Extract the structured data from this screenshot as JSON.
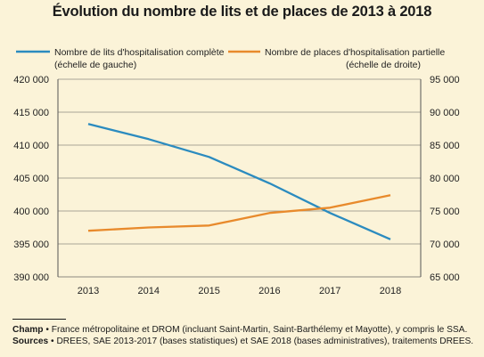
{
  "chart_data": {
    "type": "line",
    "title": "Évolution du nombre de lits et de places de 2013 à 2018",
    "categories": [
      "2013",
      "2014",
      "2015",
      "2016",
      "2017",
      "2018"
    ],
    "series": [
      {
        "name": "Nombre de lits d'hospitalisation complète",
        "axis_note": "(échelle de gauche)",
        "axis": "left",
        "color": "#2b8bbf",
        "values": [
          413200,
          410900,
          408200,
          404200,
          399700,
          395700
        ]
      },
      {
        "name": "Nombre de places d'hospitalisation partielle",
        "axis_note": "(échelle de droite)",
        "axis": "right",
        "color": "#e88a2c",
        "values": [
          72000,
          72500,
          72800,
          74700,
          75500,
          77400
        ]
      }
    ],
    "y_left": {
      "min": 390000,
      "max": 420000,
      "ticks": [
        "390 000",
        "395 000",
        "400 000",
        "405 000",
        "410 000",
        "415 000",
        "420 000"
      ]
    },
    "y_right": {
      "min": 65000,
      "max": 95000,
      "ticks": [
        "65 000",
        "70 000",
        "75 000",
        "80 000",
        "85 000",
        "90 000",
        "95 000"
      ]
    },
    "grid": true,
    "legend_position": "top"
  },
  "notes": {
    "champ_label": "Champ",
    "champ_text": "France métropolitaine et DROM (incluant Saint-Martin, Saint-Barthélemy et Mayotte), y compris le SSA.",
    "sources_label": "Sources",
    "sources_text": "DREES, SAE 2013-2017 (bases statistiques) et SAE 2018 (bases administratives), traitements DREES."
  }
}
